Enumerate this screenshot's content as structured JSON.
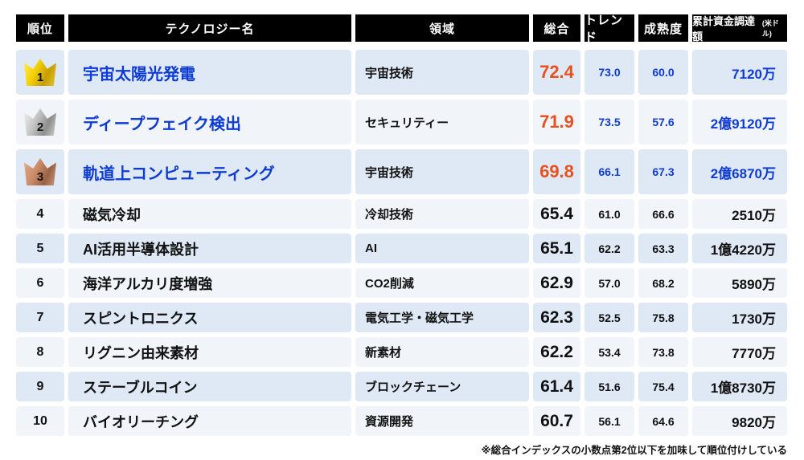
{
  "chart_data": {
    "type": "table",
    "columns": [
      {
        "label": "順位"
      },
      {
        "label": "テクノロジー名"
      },
      {
        "label": "領域"
      },
      {
        "label": "総合"
      },
      {
        "label": "トレンド"
      },
      {
        "label": "成熟度"
      },
      {
        "label": "累計資金調達額",
        "sub": "(米ドル)"
      }
    ],
    "rows": [
      {
        "rank": "1",
        "medal": "gold",
        "name": "宇宙太陽光発電",
        "domain": "宇宙技術",
        "total": "72.4",
        "trend": "73.0",
        "maturity": "60.0",
        "funding": "7120万"
      },
      {
        "rank": "2",
        "medal": "silver",
        "name": "ディープフェイク検出",
        "domain": "セキュリティー",
        "total": "71.9",
        "trend": "73.5",
        "maturity": "57.6",
        "funding": "2億9120万"
      },
      {
        "rank": "3",
        "medal": "bronze",
        "name": "軌道上コンピューティング",
        "domain": "宇宙技術",
        "total": "69.8",
        "trend": "66.1",
        "maturity": "67.3",
        "funding": "2億6870万"
      },
      {
        "rank": "4",
        "medal": "",
        "name": "磁気冷却",
        "domain": "冷却技術",
        "total": "65.4",
        "trend": "61.0",
        "maturity": "66.6",
        "funding": "2510万"
      },
      {
        "rank": "5",
        "medal": "",
        "name": "AI活用半導体設計",
        "domain": "AI",
        "total": "65.1",
        "trend": "62.2",
        "maturity": "63.3",
        "funding": "1億4220万"
      },
      {
        "rank": "6",
        "medal": "",
        "name": "海洋アルカリ度増強",
        "domain": "CO2削減",
        "total": "62.9",
        "trend": "57.0",
        "maturity": "68.2",
        "funding": "5890万"
      },
      {
        "rank": "7",
        "medal": "",
        "name": "スピントロニクス",
        "domain": "電気工学・磁気工学",
        "total": "62.3",
        "trend": "52.5",
        "maturity": "75.8",
        "funding": "1730万"
      },
      {
        "rank": "8",
        "medal": "",
        "name": "リグニン由来素材",
        "domain": "新素材",
        "total": "62.2",
        "trend": "53.4",
        "maturity": "73.8",
        "funding": "7770万"
      },
      {
        "rank": "9",
        "medal": "",
        "name": "ステーブルコイン",
        "domain": "ブロックチェーン",
        "total": "61.4",
        "trend": "51.6",
        "maturity": "75.4",
        "funding": "1億8730万"
      },
      {
        "rank": "10",
        "medal": "",
        "name": "バイオリーチング",
        "domain": "資源開発",
        "total": "60.7",
        "trend": "56.1",
        "maturity": "64.6",
        "funding": "9820万"
      }
    ]
  },
  "footnote": "※総合インデックスの小数点第2位以下を加味して順位付けしている",
  "colors": {
    "header_bg": "#000000",
    "row_odd_bg": "#dfe9f5",
    "row_even_bg": "#f1f4f9",
    "highlight_blue": "#0d3bd3",
    "highlight_orange": "#e8511d",
    "crown_gold": "#f4cf00",
    "crown_silver": "#c2c2c2",
    "crown_bronze": "#ca8b66"
  }
}
